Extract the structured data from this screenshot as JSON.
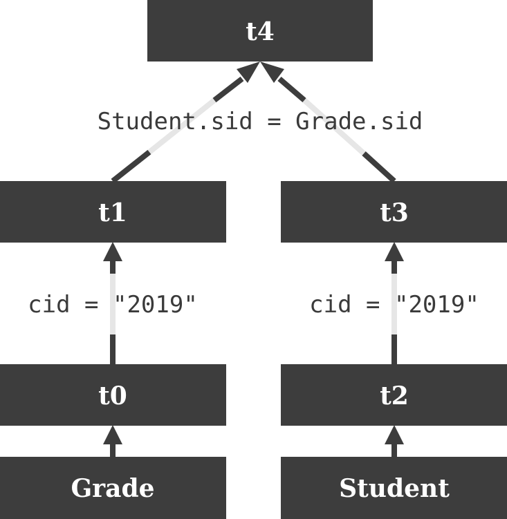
{
  "nodes": {
    "t4": "t4",
    "t1": "t1",
    "t3": "t3",
    "t0": "t0",
    "t2": "t2",
    "grade": "Grade",
    "student": "Student"
  },
  "edges": {
    "join_condition": "Student.sid = Grade.sid",
    "left_filter": "cid = \"2019\"",
    "right_filter": "cid = \"2019\""
  }
}
